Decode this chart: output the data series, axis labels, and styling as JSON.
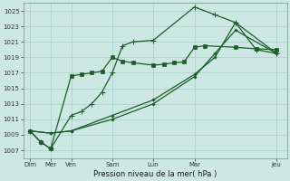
{
  "background_color": "#cde8e3",
  "plot_bg_color": "#cde8e3",
  "grid_color": "#a8cdc8",
  "line_color": "#1a5c2a",
  "xlabel": "Pression niveau de la mer( hPa )",
  "ylim": [
    1006,
    1026
  ],
  "yticks": [
    1007,
    1009,
    1011,
    1013,
    1015,
    1017,
    1019,
    1021,
    1023,
    1025
  ],
  "x_labels": [
    "Dim",
    "Mer",
    "Ven",
    "Sam",
    "Lun",
    "Mar",
    "Jeu"
  ],
  "x_tick_positions": [
    0,
    0.6,
    1.2,
    2.4,
    3.6,
    4.8,
    7.2
  ],
  "series1_x": [
    0,
    0.3,
    0.6,
    1.2,
    1.5,
    1.8,
    2.1,
    2.4,
    2.7,
    3.0,
    3.6,
    3.9,
    4.2,
    4.5,
    4.8,
    5.1,
    6.0,
    6.6,
    7.2
  ],
  "series1_y": [
    1009.5,
    1008.1,
    1007.2,
    1016.6,
    1016.8,
    1017.0,
    1017.2,
    1019.0,
    1018.5,
    1018.3,
    1018.0,
    1018.1,
    1018.3,
    1018.4,
    1020.3,
    1020.5,
    1020.3,
    1020.1,
    1020.0
  ],
  "series2_x": [
    0,
    0.3,
    0.6,
    1.2,
    1.5,
    1.8,
    2.1,
    2.4,
    2.7,
    3.0,
    3.6,
    4.8,
    5.4,
    6.0,
    6.6,
    7.2
  ],
  "series2_y": [
    1009.5,
    1008.1,
    1007.2,
    1011.5,
    1012.0,
    1013.0,
    1014.5,
    1017.0,
    1020.5,
    1021.0,
    1021.2,
    1025.5,
    1024.5,
    1023.5,
    1020.0,
    1019.5
  ],
  "series3_x": [
    0,
    0.6,
    1.2,
    2.4,
    3.6,
    4.8,
    5.4,
    6.0,
    7.2
  ],
  "series3_y": [
    1009.5,
    1009.2,
    1009.5,
    1011.0,
    1013.0,
    1016.5,
    1019.5,
    1022.5,
    1019.5
  ],
  "series4_x": [
    0,
    0.6,
    1.2,
    2.4,
    3.6,
    4.8,
    5.4,
    6.0,
    7.2
  ],
  "series4_y": [
    1009.5,
    1009.2,
    1009.5,
    1011.5,
    1013.5,
    1016.8,
    1019.0,
    1023.5,
    1019.5
  ],
  "figsize": [
    3.2,
    2.0
  ],
  "dpi": 100
}
